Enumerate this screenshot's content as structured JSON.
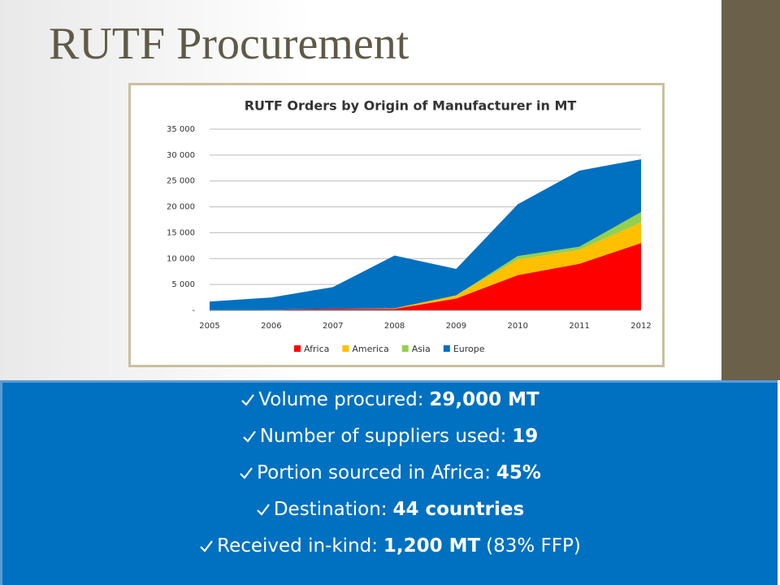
{
  "slide_title": "RUTF Procurement",
  "chart_data": {
    "type": "stacked_area",
    "title": "RUTF Orders by Origin of Manufacturer in MT",
    "x": [
      2005,
      2006,
      2007,
      2008,
      2009,
      2010,
      2011,
      2012
    ],
    "xlim": [
      2005,
      2012
    ],
    "xticks": [
      2005,
      2006,
      2007,
      2008,
      2009,
      2010,
      2011,
      2012
    ],
    "ylim": [
      0,
      35000
    ],
    "yticks": [
      {
        "value": 0,
        "label": "-"
      },
      {
        "value": 5000,
        "label": "5 000"
      },
      {
        "value": 10000,
        "label": "10 000"
      },
      {
        "value": 15000,
        "label": "15 000"
      },
      {
        "value": 20000,
        "label": "20 000"
      },
      {
        "value": 25000,
        "label": "25 000"
      },
      {
        "value": 30000,
        "label": "30 000"
      },
      {
        "value": 35000,
        "label": "35 000"
      }
    ],
    "grid": true,
    "legend": "bottom",
    "series": [
      {
        "name": "Africa",
        "color": "#ff0000",
        "values": [
          0,
          100,
          300,
          300,
          2300,
          6800,
          9000,
          13000
        ]
      },
      {
        "name": "America",
        "color": "#ffc000",
        "values": [
          0,
          0,
          0,
          100,
          600,
          3000,
          2700,
          4000
        ]
      },
      {
        "name": "Asia",
        "color": "#92d050",
        "values": [
          0,
          0,
          0,
          0,
          0,
          700,
          600,
          2000
        ]
      },
      {
        "name": "Europe",
        "color": "#0070c0",
        "values": [
          1700,
          2400,
          4200,
          10200,
          5100,
          10000,
          14700,
          10200
        ]
      }
    ]
  },
  "bullets": [
    {
      "label": "Volume procured:",
      "value": "29,000 MT"
    },
    {
      "label": "Number of suppliers used:",
      "value": "19"
    },
    {
      "label": "Portion sourced in Africa:",
      "value": "45%"
    },
    {
      "label": "Destination:",
      "value": "44 countries"
    },
    {
      "label": "Received in-kind:",
      "value": "1,200 MT",
      "suffix": "(83% FFP)"
    }
  ]
}
